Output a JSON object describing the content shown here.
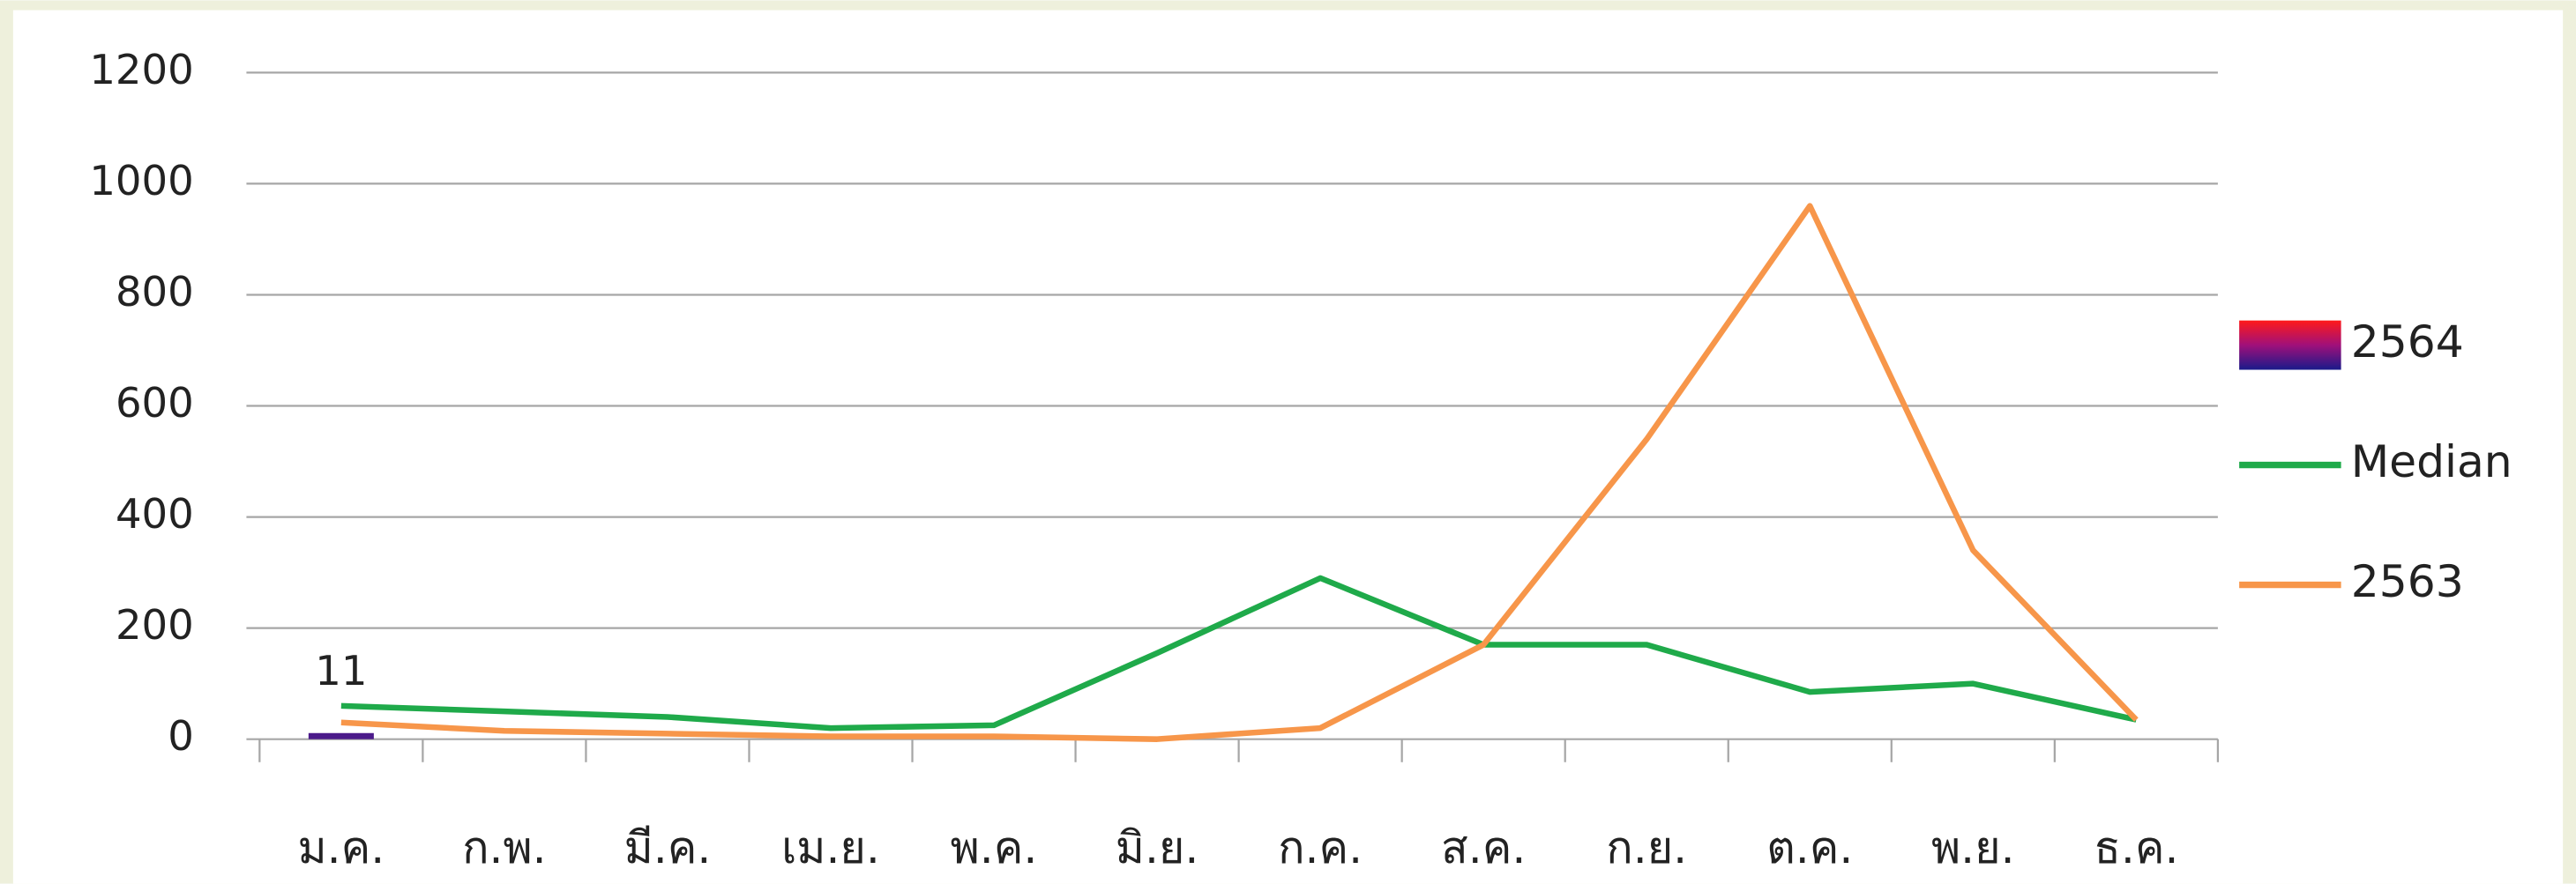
{
  "chart_data": {
    "type": "line",
    "categories": [
      "ม.ค.",
      "ก.พ.",
      "มี.ค.",
      "เม.ย.",
      "พ.ค.",
      "มิ.ย.",
      "ก.ค.",
      "ส.ค.",
      "ก.ย.",
      "ต.ค.",
      "พ.ย.",
      "ธ.ค."
    ],
    "series": [
      {
        "name": "2564",
        "type": "bar",
        "color": "#4b1a8a",
        "values": [
          11,
          null,
          null,
          null,
          null,
          null,
          null,
          null,
          null,
          null,
          null,
          null
        ]
      },
      {
        "name": "Median",
        "type": "line",
        "color": "#1faa4a",
        "values": [
          60,
          50,
          40,
          20,
          25,
          155,
          290,
          170,
          170,
          85,
          100,
          35
        ]
      },
      {
        "name": "2563",
        "type": "line",
        "color": "#f7964a",
        "values": [
          30,
          15,
          10,
          5,
          5,
          0,
          20,
          170,
          540,
          960,
          340,
          35
        ]
      }
    ],
    "ylim": [
      0,
      1200
    ],
    "yticks": [
      0,
      200,
      400,
      600,
      800,
      1000,
      1200
    ],
    "grid": true,
    "legend": "right"
  }
}
